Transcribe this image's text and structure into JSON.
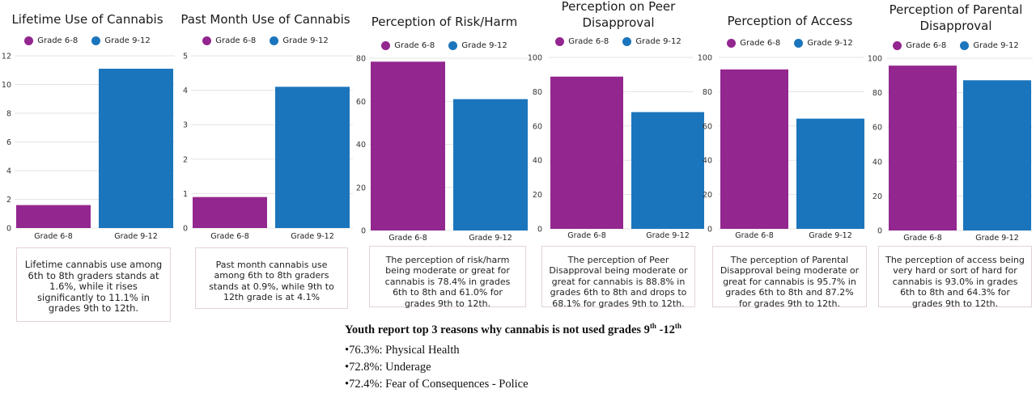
{
  "colors": {
    "grade_6_8": "#93268f",
    "grade_9_12": "#1b75bc",
    "grid": "#e3e3e3"
  },
  "chart_data": [
    {
      "type": "bar",
      "title": "Lifetime Use of Cannabis",
      "categories": [
        "Grade 6-8",
        "Grade 9-12"
      ],
      "legend": [
        "Grade 6-8",
        "Grade 9-12"
      ],
      "values": [
        1.6,
        11.1
      ],
      "ylim": [
        0,
        12
      ],
      "yticks": [
        0,
        2,
        4,
        6,
        8,
        10,
        12
      ],
      "grid": true,
      "legend_position": "top",
      "description": "Lifetime cannabis use among 6th to 8th graders stands at 1.6%, while it rises significantly to 11.1% in grades 9th to 12th."
    },
    {
      "type": "bar",
      "title": "Past Month Use of Cannabis",
      "categories": [
        "Grade 6-8",
        "Grade 9-12"
      ],
      "legend": [
        "Grade 6-8",
        "Grade 9-12"
      ],
      "values": [
        0.9,
        4.1
      ],
      "ylim": [
        0,
        5
      ],
      "yticks": [
        0,
        1,
        2,
        3,
        4,
        5
      ],
      "grid": true,
      "legend_position": "top",
      "description": "Past month cannabis use among 6th to 8th graders stands at 0.9%, while 9th to 12th grade is at 4.1%"
    },
    {
      "type": "bar",
      "title": "Perception of Risk/Harm",
      "categories": [
        "Grade 6-8",
        "Grade 9-12"
      ],
      "legend": [
        "Grade 6-8",
        "Grade 9-12"
      ],
      "values": [
        78.4,
        61.0
      ],
      "ylim": [
        0,
        80
      ],
      "yticks": [
        0,
        20,
        40,
        60,
        80
      ],
      "grid": true,
      "legend_position": "top",
      "description": "The perception of risk/harm being moderate or great for cannabis is 78.4% in grades 6th to 8th and 61.0% for grades 9th to 12th."
    },
    {
      "type": "bar",
      "title": "Perception on Peer Disapproval",
      "categories": [
        "Grade 6-8",
        "Grade 9-12"
      ],
      "legend": [
        "Grade 6-8",
        "Grade 9-12"
      ],
      "values": [
        88.8,
        68.1
      ],
      "ylim": [
        0,
        100
      ],
      "yticks": [
        0,
        20,
        40,
        60,
        80,
        100
      ],
      "grid": true,
      "legend_position": "top",
      "description": "The perception of Peer Disapproval being moderate or great for cannabis is 88.8% in grades 6th to 8th and drops to 68.1% for grades 9th to 12th."
    },
    {
      "type": "bar",
      "title": "Perception of Access",
      "categories": [
        "Grade 6-8",
        "Grade 9-12"
      ],
      "legend": [
        "Grade 6-8",
        "Grade 9-12"
      ],
      "values": [
        93.0,
        64.3
      ],
      "ylim": [
        0,
        100
      ],
      "yticks": [
        0,
        20,
        40,
        60,
        80,
        100
      ],
      "grid": true,
      "legend_position": "top",
      "description": "The perception of Parental Disapproval being moderate or great for cannabis is 95.7% in grades 6th to 8th and 87.2% for grades 9th to 12th."
    },
    {
      "type": "bar",
      "title": "Perception of Parental Disapproval",
      "categories": [
        "Grade 6-8",
        "Grade 9-12"
      ],
      "legend": [
        "Grade 6-8",
        "Grade 9-12"
      ],
      "values": [
        95.7,
        87.2
      ],
      "ylim": [
        0,
        100
      ],
      "yticks": [
        0,
        20,
        40,
        60,
        80,
        100
      ],
      "grid": true,
      "legend_position": "top",
      "description": "The perception of access being very hard or sort of hard for cannabis is 93.0% in grades 6th to 8th and 64.3% for grades 9th to 12th."
    }
  ],
  "reasons": {
    "heading_prefix": "Youth report top 3 reasons why cannabis is not used grades 9",
    "sup1": "th",
    "heading_mid": " -12",
    "sup2": "th",
    "items": [
      "•76.3%: Physical Health",
      "•72.8%: Underage",
      "•72.4%: Fear of Consequences - Police"
    ]
  }
}
